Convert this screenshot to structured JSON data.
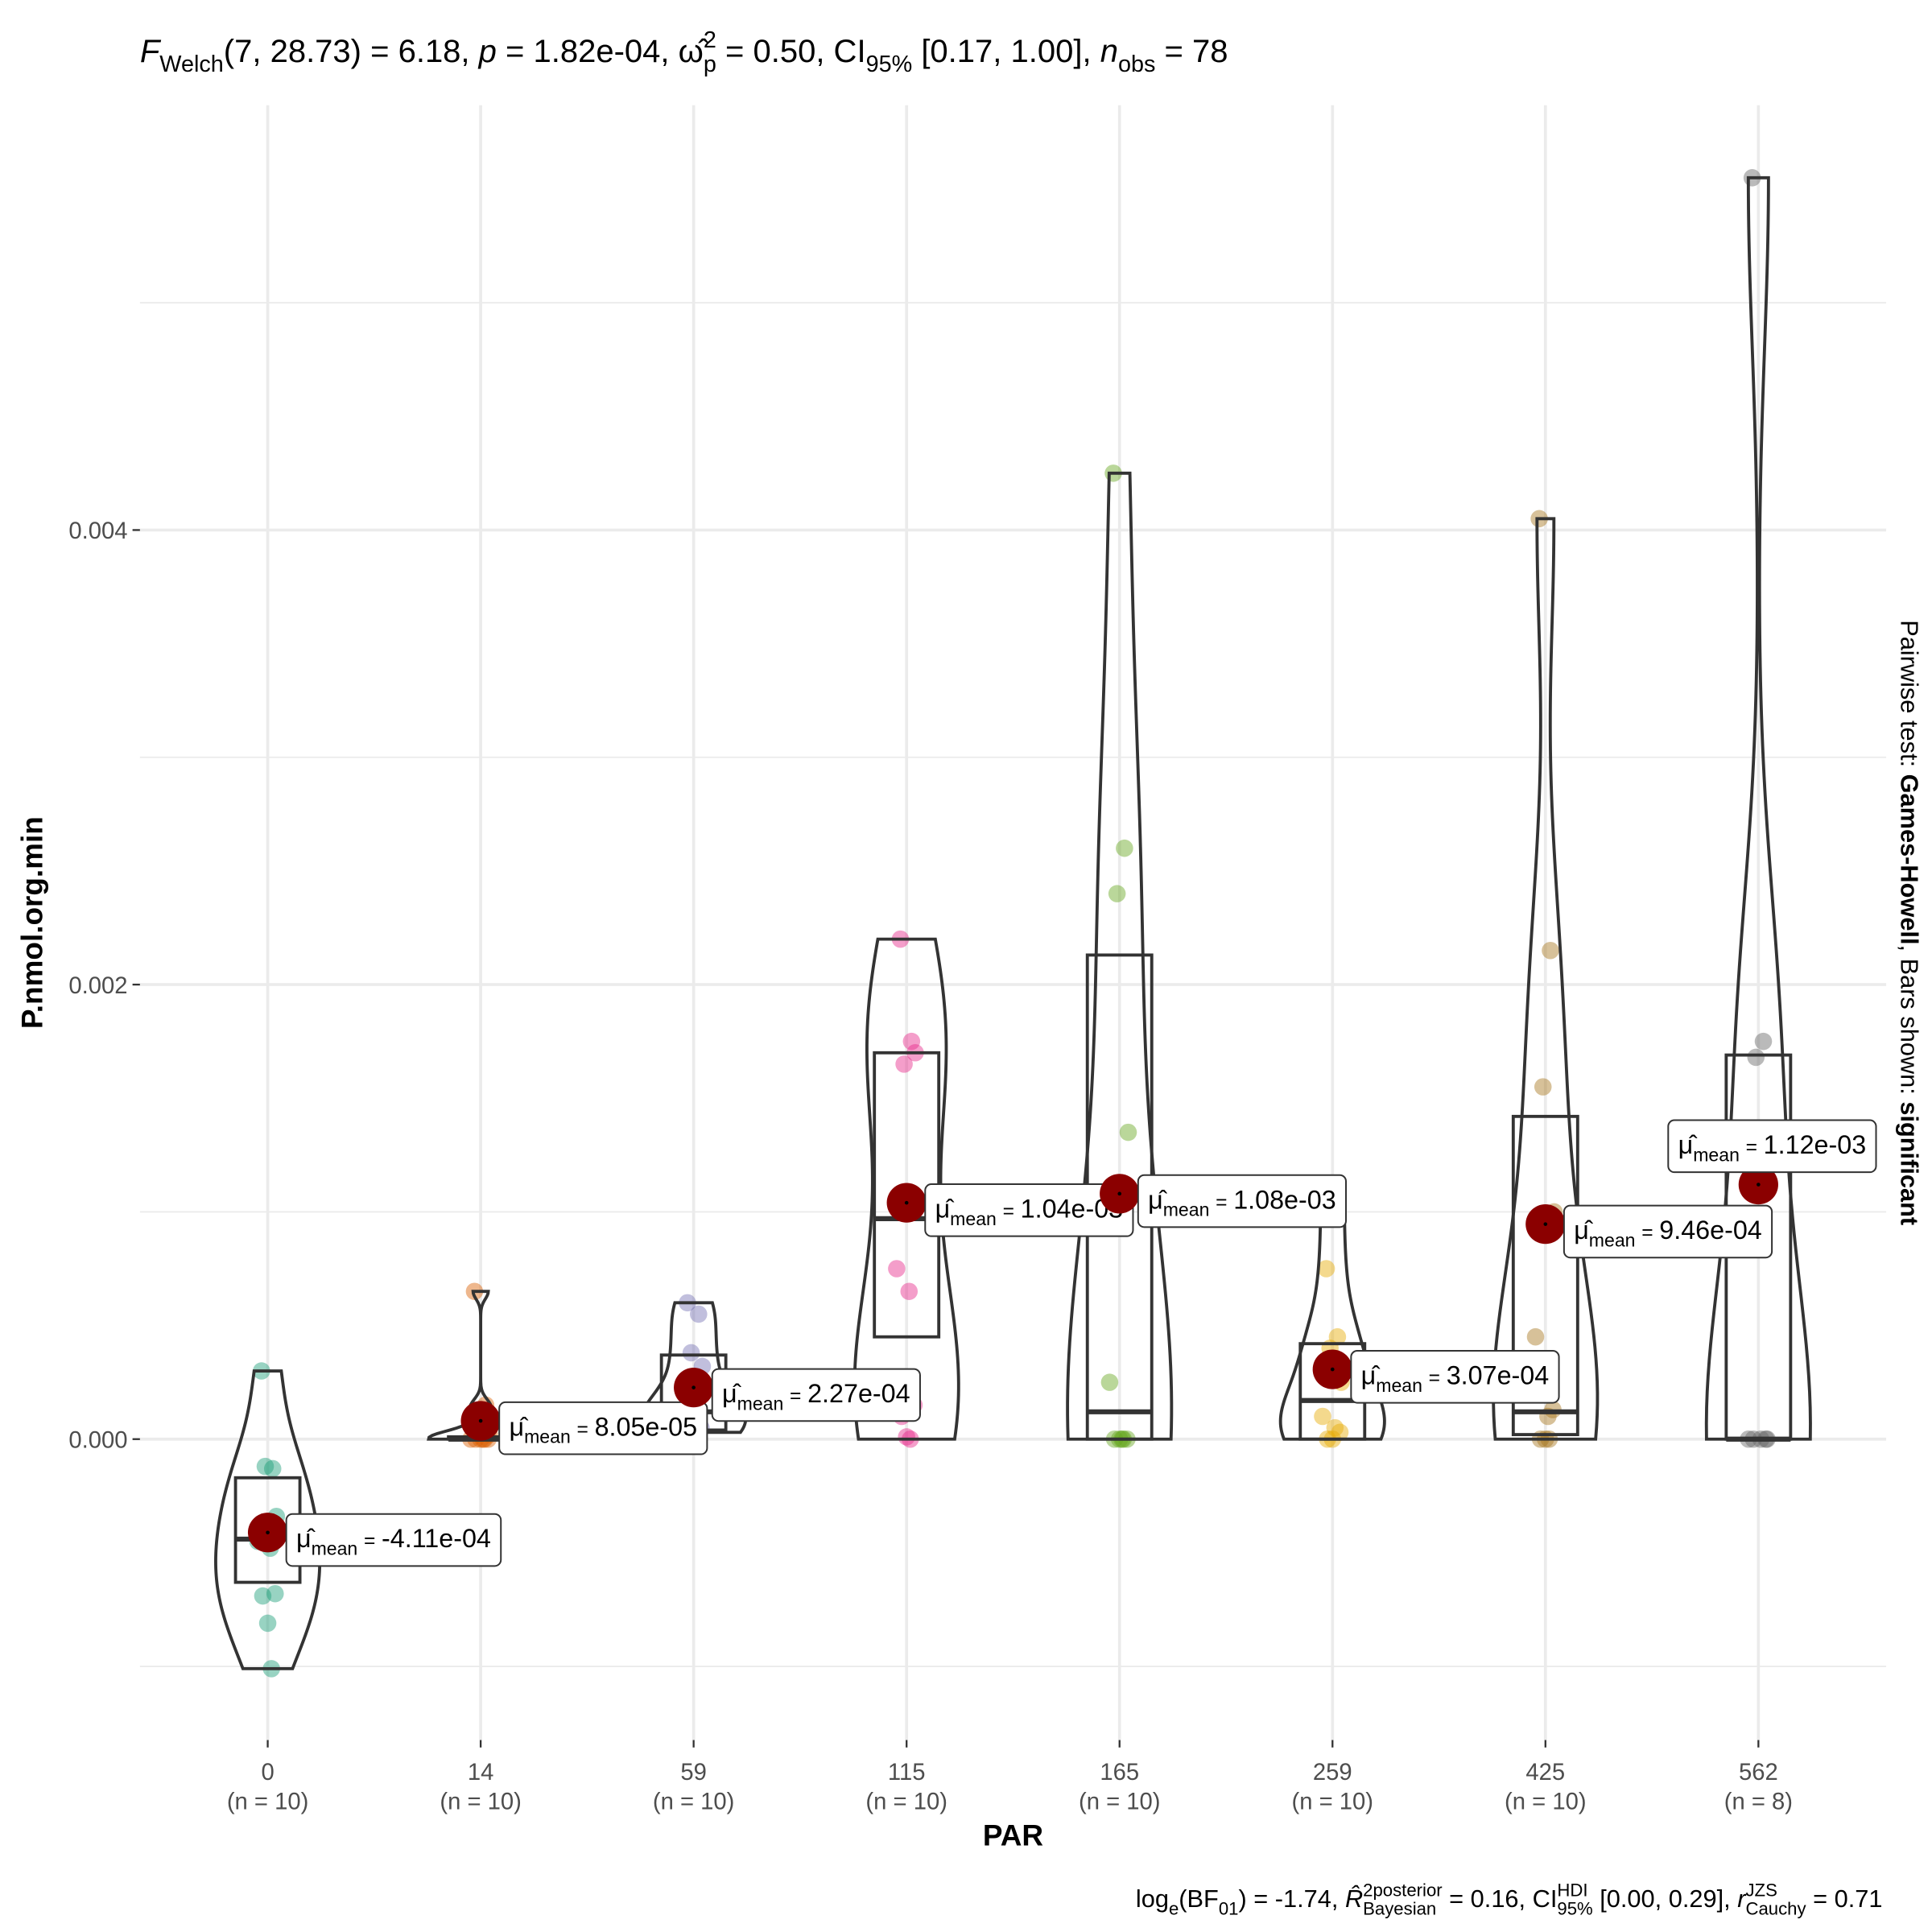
{
  "chart_data": {
    "type": "violin-box",
    "subtitle": [
      [
        "F",
        "it"
      ],
      [
        "Welch",
        "sub"
      ],
      [
        "(7, 28.73) = 6.18, ",
        "base"
      ],
      [
        "p",
        "it"
      ],
      [
        " = 1.82e-04, ",
        "base"
      ],
      [
        "ω̂",
        "base"
      ],
      [
        "2",
        "sup"
      ],
      [
        "p",
        "sub"
      ],
      [
        " = 0.50, CI",
        "base"
      ],
      [
        "95%",
        "sub"
      ],
      [
        " [0.17, 1.00], ",
        "base"
      ],
      [
        "n",
        "it"
      ],
      [
        "obs",
        "sub"
      ],
      [
        " = 78",
        "base"
      ]
    ],
    "caption": [
      [
        "log",
        "base"
      ],
      [
        "e",
        "sub"
      ],
      [
        "(BF",
        "base"
      ],
      [
        "01",
        "sub"
      ],
      [
        ") = -1.74, ",
        "base"
      ],
      [
        "R̂",
        "it"
      ],
      [
        "2",
        "sup"
      ],
      [
        "posterior",
        "sup"
      ],
      [
        "Bayesian",
        "sub"
      ],
      [
        " = 0.16, CI",
        "base"
      ],
      [
        "HDI",
        "sup"
      ],
      [
        "95%",
        "sub"
      ],
      [
        " [0.00, 0.29], ",
        "base"
      ],
      [
        "r",
        "it"
      ],
      [
        "JZS",
        "sup"
      ],
      [
        "Cauchy",
        "sub"
      ],
      [
        " = 0.71",
        "base"
      ]
    ],
    "side_note": [
      [
        "Pairwise test: ",
        "base"
      ],
      [
        "Games-Howell",
        "bold"
      ],
      [
        ", Bars shown: ",
        "base"
      ],
      [
        "significant",
        "bold"
      ]
    ],
    "x_label": "PAR",
    "y_label": "P.nmol.org.min",
    "categories": [
      "0",
      "14",
      "59",
      "115",
      "165",
      "259",
      "425",
      "562"
    ],
    "n_labels": [
      "(n = 10)",
      "(n = 10)",
      "(n = 10)",
      "(n = 10)",
      "(n = 10)",
      "(n = 10)",
      "(n = 10)",
      "(n = 8)"
    ],
    "colors": [
      "#1b9e77",
      "#d95f02",
      "#7570b3",
      "#e7298a",
      "#66a61e",
      "#e6ab02",
      "#a6761d",
      "#666666"
    ],
    "points": [
      [
        0.0003,
        -0.00013,
        -0.00012,
        -0.00034,
        -0.00045,
        -0.00048,
        -0.00068,
        -0.00069,
        -0.00081,
        -0.00101
      ],
      [
        0.00065,
        0.00015,
        0.0001,
        2e-05,
        0,
        0,
        0,
        0,
        0,
        0
      ],
      [
        0.0006,
        0.00055,
        0.00038,
        0.00032,
        0.00012,
        8e-05,
        5e-05,
        3e-05,
        0.0001,
        0.0001
      ],
      [
        0.0022,
        0.00175,
        0.00165,
        0.0017,
        0.00075,
        0.00065,
        0.00015,
        0.0001,
        1e-05,
        0
      ],
      [
        0.00425,
        0.0026,
        0.0024,
        0.00135,
        0.00025,
        0,
        0,
        0,
        0,
        0
      ],
      [
        0.00075,
        0.00045,
        0.0004,
        0.00025,
        0.0001,
        5e-05,
        3e-05,
        0,
        0,
        0.00107
      ],
      [
        0.00405,
        0.00215,
        0.00155,
        0.001,
        0.00045,
        0.0001,
        0.00013,
        0,
        0,
        0
      ],
      [
        0.00555,
        0.00175,
        0.00168,
        0,
        0,
        0,
        0,
        0
      ]
    ],
    "boxes": [
      {
        "q1": -0.00063,
        "median": -0.00044,
        "q3": -0.00017
      },
      {
        "q1": 0,
        "median": 0,
        "q3": 1e-05
      },
      {
        "q1": 4e-05,
        "median": 0.00012,
        "q3": 0.00037
      },
      {
        "q1": 0.00045,
        "median": 0.00097,
        "q3": 0.0017
      },
      {
        "q1": 0,
        "median": 0.00012,
        "q3": 0.00213
      },
      {
        "q1": 0,
        "median": 0.00017,
        "q3": 0.00042
      },
      {
        "q1": 2e-05,
        "median": 0.00012,
        "q3": 0.00142
      },
      {
        "q1": 0,
        "median": 0,
        "q3": 0.00169
      }
    ],
    "means": [
      -0.000411,
      8.05e-05,
      0.000227,
      0.00104,
      0.00108,
      0.000307,
      0.000946,
      0.00112
    ],
    "mean_value_labels": [
      "-4.11e-04",
      "8.05e-05",
      "2.27e-04",
      "1.04e-03",
      "1.08e-03",
      "3.07e-04",
      "9.46e-04",
      "1.12e-03"
    ],
    "mean_label": {
      "symbol": "μ̂",
      "sub": "mean",
      "eq": "="
    },
    "mean_color": "#8b0000",
    "ylim": [
      -0.001324,
      0.005869
    ],
    "yticks": [
      {
        "value": 0,
        "label": "0.000"
      },
      {
        "value": 0.002,
        "label": "0.002"
      },
      {
        "value": 0.004,
        "label": "0.004"
      }
    ],
    "minor_yticks": [
      -0.001,
      0.001,
      0.003,
      0.005
    ],
    "grid": true
  }
}
